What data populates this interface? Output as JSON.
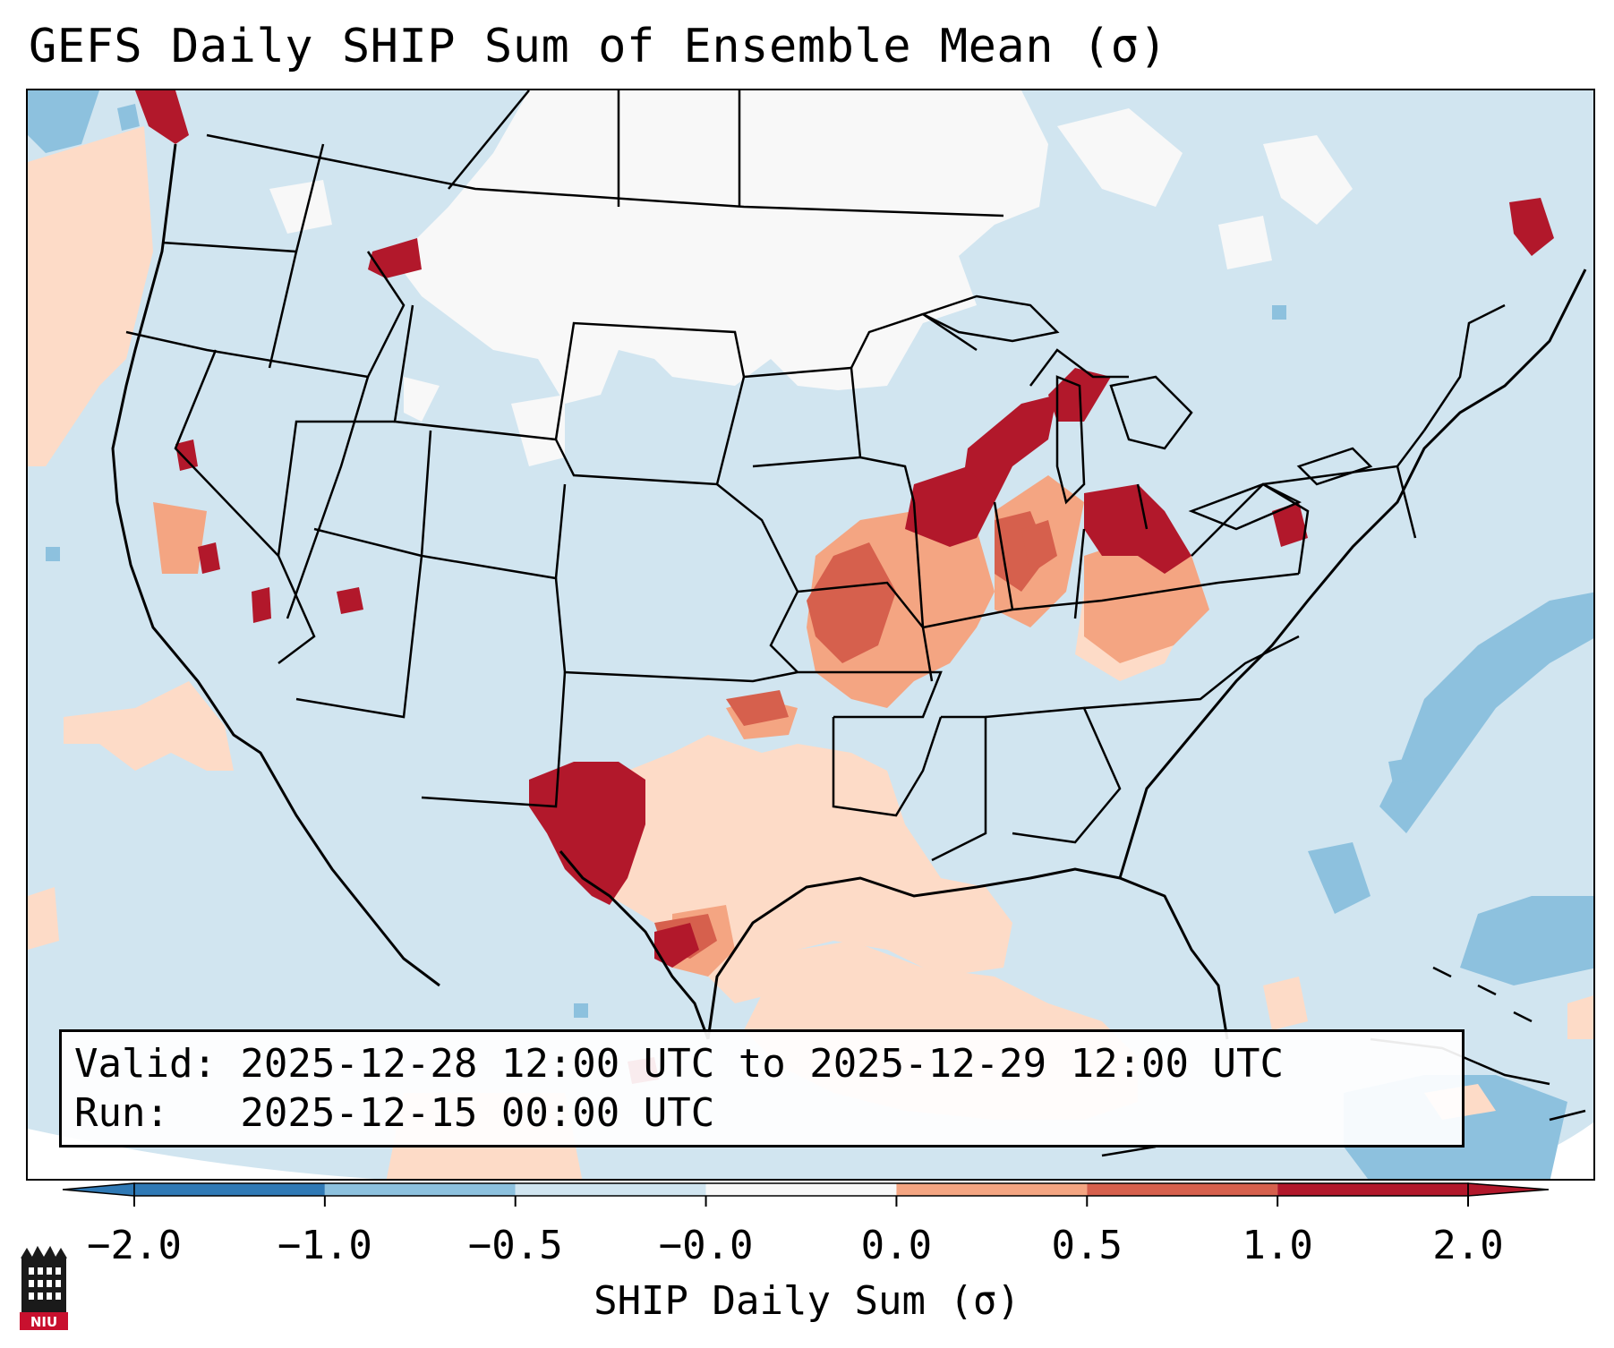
{
  "title": "GEFS Daily SHIP Sum of Ensemble Mean (σ)",
  "info_box": {
    "valid_line": "Valid: 2025-12-28 12:00 UTC to 2025-12-29 12:00 UTC",
    "run_line": "Run:   2025-12-15 00:00 UTC"
  },
  "colorbar": {
    "label": "SHIP Daily Sum (σ)",
    "ticks": [
      "−2.0",
      "−1.0",
      "−0.5",
      "−0.0",
      "0.0",
      "0.5",
      "1.0",
      "2.0"
    ],
    "colors": [
      "#2f79b5",
      "#8dc1de",
      "#d1e5f0",
      "#f8f8f8",
      "#fddbc7",
      "#f4a582",
      "#d6604d",
      "#b2182b"
    ],
    "extend": "both"
  },
  "logo": {
    "text": "NIU",
    "icon": "university-tower-icon"
  },
  "map": {
    "projection": "lambert-conformal-conus",
    "background_color": "#d1e5f0",
    "regions": [
      {
        "category": "near-zero",
        "area": "Canadian Prairies / northern Plains"
      },
      {
        "category": "high-positive",
        "area": "West Texas / Big Bend"
      },
      {
        "category": "high-positive",
        "area": "Northern Illinois / Wisconsin / southern Michigan"
      },
      {
        "category": "high-positive",
        "area": "Indiana / Ohio"
      },
      {
        "category": "high-positive",
        "area": "Maine / New Brunswick"
      },
      {
        "category": "moderate-positive",
        "area": "Kansas / Missouri corridor"
      },
      {
        "category": "low-positive",
        "area": "Texas / Gulf of Mexico"
      },
      {
        "category": "low-negative",
        "area": "Western Atlantic"
      }
    ]
  }
}
